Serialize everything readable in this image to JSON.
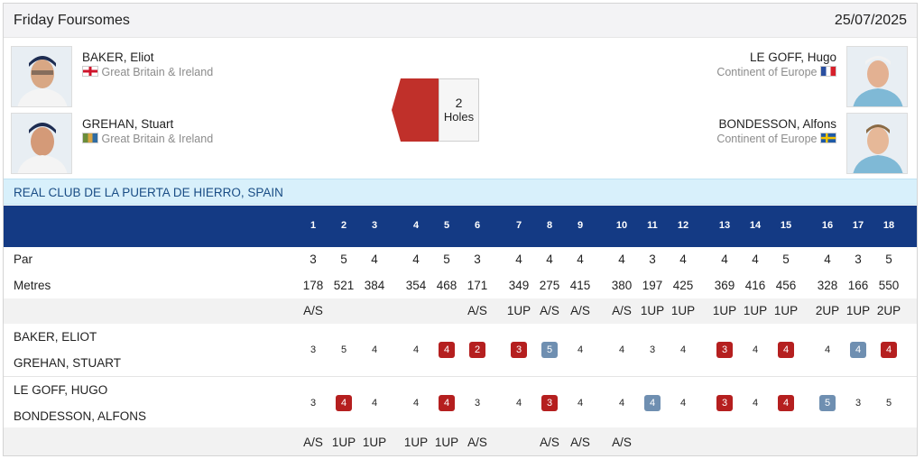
{
  "match": {
    "title": "Friday Foursomes",
    "date": "25/07/2025"
  },
  "players": {
    "left": [
      {
        "name": "BAKER, Eliot",
        "team": "Great Britain & Ireland",
        "flag": "england-flag"
      },
      {
        "name": "GREHAN, Stuart",
        "team": "Great Britain & Ireland",
        "flag": "ireland-flag"
      }
    ],
    "right": [
      {
        "name": "LE GOFF, Hugo",
        "team": "Continent of Europe",
        "flag": "france-flag"
      },
      {
        "name": "BONDESSON, Alfons",
        "team": "Continent of Europe",
        "flag": "sweden-flag"
      }
    ]
  },
  "result": {
    "value": "2",
    "unit": "Holes",
    "leader_color": "#c0302a"
  },
  "venue": "REAL CLUB DE LA PUERTA DE HIERRO, SPAIN",
  "holes": [
    "1",
    "2",
    "3",
    "4",
    "5",
    "6",
    "7",
    "8",
    "9",
    "10",
    "11",
    "12",
    "13",
    "14",
    "15",
    "16",
    "17",
    "18"
  ],
  "labels": {
    "par": "Par",
    "metres": "Metres"
  },
  "par": [
    "3",
    "5",
    "4",
    "4",
    "5",
    "3",
    "4",
    "4",
    "4",
    "4",
    "3",
    "4",
    "4",
    "4",
    "5",
    "4",
    "3",
    "5"
  ],
  "metres": [
    "178",
    "521",
    "384",
    "354",
    "468",
    "171",
    "349",
    "275",
    "415",
    "380",
    "197",
    "425",
    "369",
    "416",
    "456",
    "328",
    "166",
    "550"
  ],
  "status_top": [
    "A/S",
    "",
    "",
    "",
    "",
    "A/S",
    "1UP",
    "A/S",
    "A/S",
    "A/S",
    "1UP",
    "1UP",
    "1UP",
    "1UP",
    "1UP",
    "2UP",
    "1UP",
    "2UP"
  ],
  "team_top": {
    "player1": "BAKER, ELIOT",
    "player2": "GREHAN, STUART",
    "scores": [
      "3",
      "5",
      "4",
      "4",
      "4",
      "2",
      "3",
      "5",
      "4",
      "4",
      "3",
      "4",
      "3",
      "4",
      "4",
      "4",
      "4",
      "4"
    ],
    "marks": [
      "",
      "",
      "",
      "",
      "red",
      "red",
      "red",
      "blue",
      "",
      "",
      "",
      "",
      "red",
      "",
      "red",
      "",
      "blue",
      "red"
    ]
  },
  "team_bottom": {
    "player1": "LE GOFF, HUGO",
    "player2": "BONDESSON, ALFONS",
    "scores": [
      "3",
      "4",
      "4",
      "4",
      "4",
      "3",
      "4",
      "3",
      "4",
      "4",
      "4",
      "4",
      "3",
      "4",
      "4",
      "5",
      "3",
      "5"
    ],
    "marks": [
      "",
      "red",
      "",
      "",
      "red",
      "",
      "",
      "red",
      "",
      "",
      "blue",
      "",
      "red",
      "",
      "red",
      "blue",
      "",
      ""
    ]
  },
  "status_bottom": [
    "A/S",
    "1UP",
    "1UP",
    "1UP",
    "1UP",
    "A/S",
    "",
    "A/S",
    "A/S",
    "A/S",
    "",
    "",
    "",
    "",
    "",
    "",
    "",
    ""
  ],
  "colors": {
    "header_bg": "#143a84",
    "venue_bg": "#d8f0fb",
    "win_red": "#b51f1f",
    "win_blue": "#6f8fb1"
  }
}
